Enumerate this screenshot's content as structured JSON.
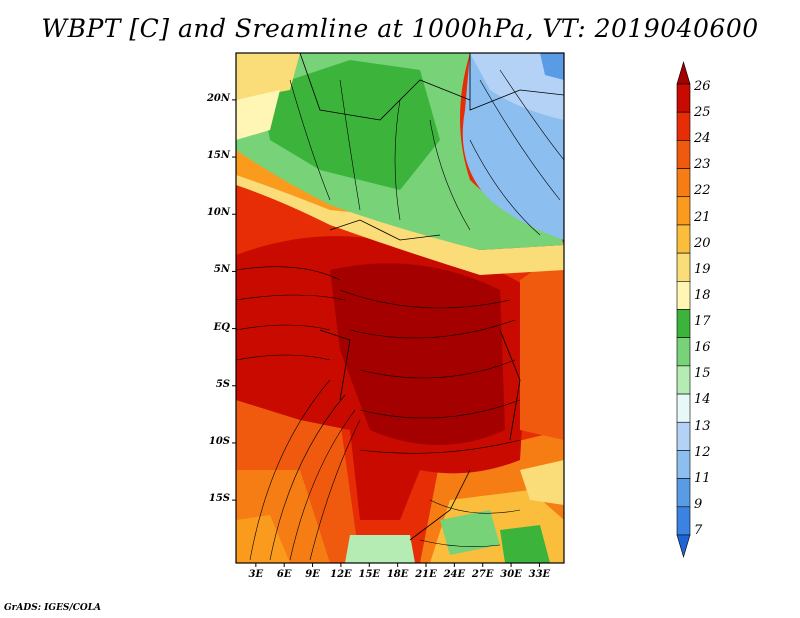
{
  "title": "WBPT [C] and Sreamline at 1000hPa, VT: 2019040600",
  "footer": "GrADS: IGES/COLA",
  "map": {
    "lat_labels": [
      "20N",
      "15N",
      "10N",
      "5N",
      "EQ",
      "5S",
      "10S",
      "15S"
    ],
    "lat_values": [
      20,
      15,
      10,
      5,
      0,
      -5,
      -10,
      -15
    ],
    "lon_labels": [
      "3E",
      "6E",
      "9E",
      "12E",
      "15E",
      "18E",
      "21E",
      "24E",
      "27E",
      "30E",
      "33E"
    ],
    "lon_values": [
      3,
      6,
      9,
      12,
      15,
      18,
      21,
      24,
      27,
      30,
      33
    ]
  },
  "colorbar": {
    "labels": [
      "26",
      "25",
      "24",
      "23",
      "22",
      "21",
      "20",
      "19",
      "18",
      "17",
      "16",
      "15",
      "14",
      "13",
      "12",
      "11",
      "9",
      "7"
    ],
    "colors": [
      "#a50000",
      "#c80a00",
      "#e62d05",
      "#f05a0f",
      "#f57d14",
      "#fa9b1e",
      "#fabe3c",
      "#fadc78",
      "#fff5b4",
      "#3cb43c",
      "#78d278",
      "#b4ecb4",
      "#e6f8f8",
      "#b4d2f5",
      "#8cbef0",
      "#5a9be6",
      "#3c82e1",
      "#1e64d7"
    ]
  }
}
